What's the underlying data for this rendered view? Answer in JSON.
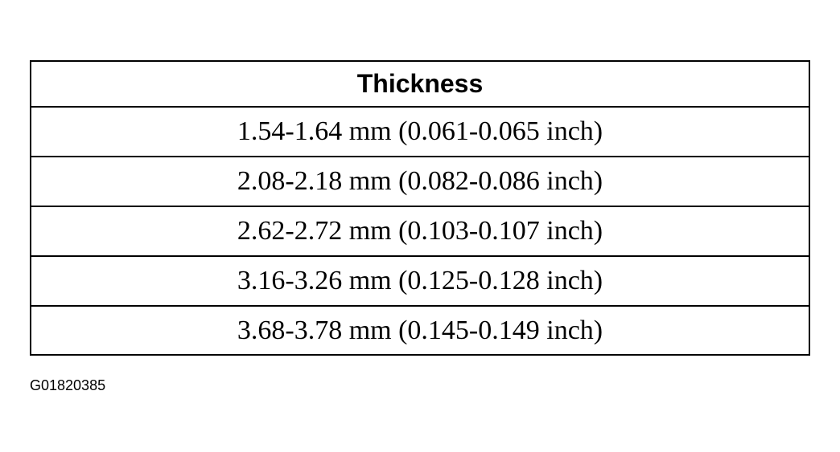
{
  "table": {
    "header": "Thickness",
    "rows": [
      "1.54-1.64 mm (0.061-0.065 inch)",
      "2.08-2.18 mm (0.082-0.086 inch)",
      "2.62-2.72 mm (0.103-0.107 inch)",
      "3.16-3.26 mm (0.125-0.128 inch)",
      "3.68-3.78 mm (0.145-0.149 inch)"
    ]
  },
  "caption": "G01820385"
}
